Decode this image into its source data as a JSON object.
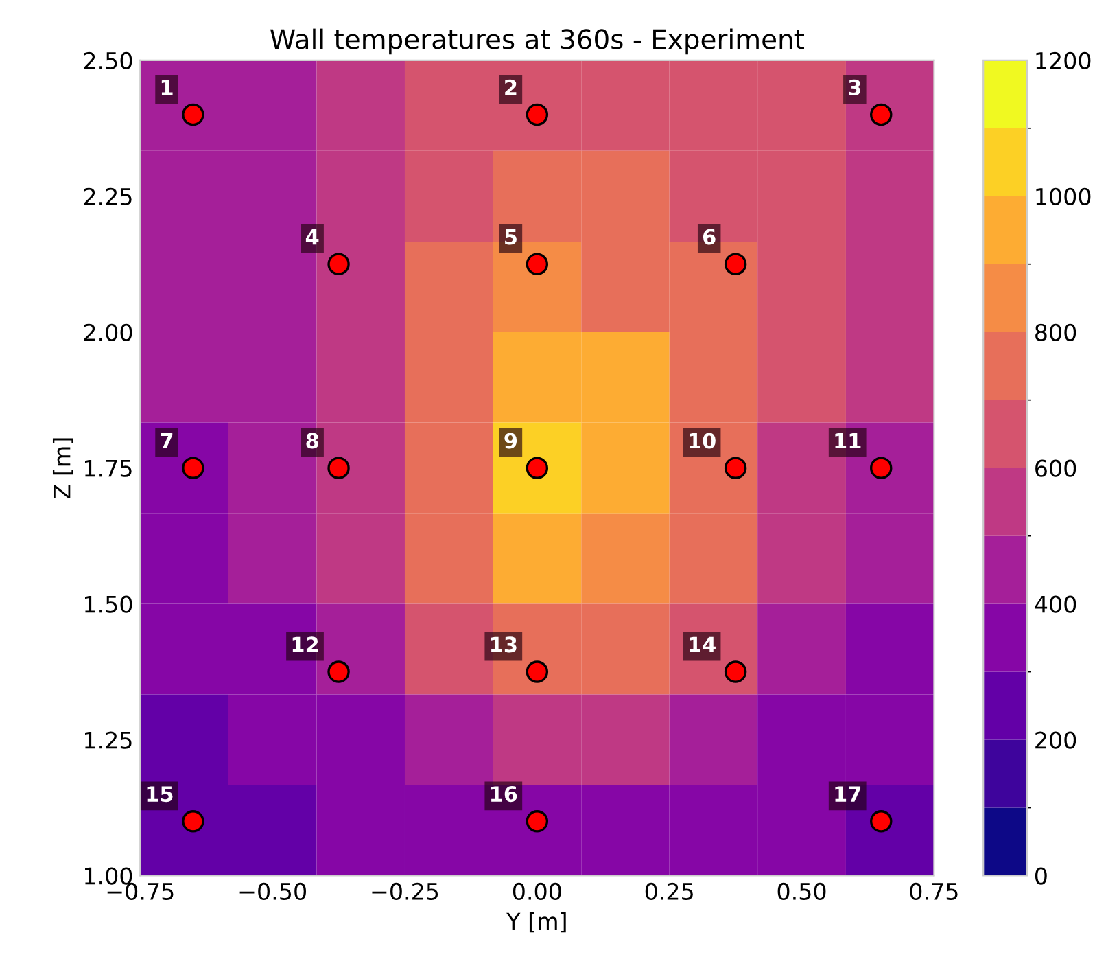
{
  "chart_data": {
    "type": "heatmap",
    "x": [
      -0.667,
      -0.5,
      -0.333,
      -0.167,
      0,
      0.167,
      0.333,
      0.5,
      0.667
    ],
    "y": [
      2.417,
      2.25,
      2.083,
      1.917,
      1.75,
      1.583,
      1.417,
      1.25,
      1.083
    ],
    "cells": [
      [
        430,
        480,
        560,
        640,
        680,
        680,
        650,
        600,
        560
      ],
      [
        420,
        470,
        560,
        660,
        720,
        710,
        660,
        600,
        540
      ],
      [
        410,
        460,
        560,
        700,
        800,
        780,
        700,
        600,
        520
      ],
      [
        400,
        450,
        560,
        760,
        930,
        900,
        740,
        600,
        500
      ],
      [
        380,
        440,
        550,
        780,
        1010,
        960,
        760,
        580,
        470
      ],
      [
        360,
        410,
        520,
        730,
        920,
        880,
        720,
        530,
        430
      ],
      [
        320,
        370,
        470,
        620,
        720,
        700,
        600,
        460,
        380
      ],
      [
        280,
        320,
        390,
        480,
        530,
        520,
        470,
        380,
        320
      ],
      [
        250,
        280,
        330,
        370,
        390,
        380,
        350,
        300,
        260
      ]
    ],
    "title": "Wall temperatures at 360s - Experiment",
    "xlabel": "Y [m]",
    "ylabel": "Z [m]",
    "clim": [
      0,
      1200
    ],
    "cticks": [
      0,
      200,
      400,
      600,
      800,
      1000,
      1200
    ],
    "xlim": [
      -0.75,
      0.75
    ],
    "xticks": [
      {
        "value": -0.75,
        "label": "−0.75"
      },
      {
        "value": -0.5,
        "label": "−0.50"
      },
      {
        "value": -0.25,
        "label": "−0.25"
      },
      {
        "value": 0,
        "label": "0.00"
      },
      {
        "value": 0.25,
        "label": "0.25"
      },
      {
        "value": 0.5,
        "label": "0.50"
      },
      {
        "value": 0.75,
        "label": "0.75"
      }
    ],
    "ylim": [
      1.0,
      2.5
    ],
    "yticks": [
      {
        "value": 1.0,
        "label": "1.00"
      },
      {
        "value": 1.25,
        "label": "1.25"
      },
      {
        "value": 1.5,
        "label": "1.50"
      },
      {
        "value": 1.75,
        "label": "1.75"
      },
      {
        "value": 2.0,
        "label": "2.00"
      },
      {
        "value": 2.25,
        "label": "2.25"
      },
      {
        "value": 2.5,
        "label": "2.50"
      }
    ],
    "series": [
      {
        "type": "scatter",
        "color": "#ff0000",
        "marker": "circle",
        "x": [
          -0.65,
          0,
          0.65,
          -0.375,
          0,
          0.375,
          -0.65,
          -0.375,
          0,
          0.375,
          0.65,
          -0.375,
          0,
          0.375,
          -0.65,
          0,
          0.65
        ],
        "values": [
          2.4,
          2.4,
          2.4,
          2.125,
          2.125,
          2.125,
          1.75,
          1.75,
          1.75,
          1.75,
          1.75,
          1.375,
          1.375,
          1.375,
          1.1,
          1.1,
          1.1
        ]
      }
    ],
    "annotations": [
      {
        "text": "1",
        "x": -0.65,
        "y": 2.4
      },
      {
        "text": "2",
        "x": 0,
        "y": 2.4
      },
      {
        "text": "3",
        "x": 0.65,
        "y": 2.4
      },
      {
        "text": "4",
        "x": -0.375,
        "y": 2.125
      },
      {
        "text": "5",
        "x": 0,
        "y": 2.125
      },
      {
        "text": "6",
        "x": 0.375,
        "y": 2.125
      },
      {
        "text": "7",
        "x": -0.65,
        "y": 1.75
      },
      {
        "text": "8",
        "x": -0.375,
        "y": 1.75
      },
      {
        "text": "9",
        "x": 0,
        "y": 1.75
      },
      {
        "text": "10",
        "x": 0.375,
        "y": 1.75
      },
      {
        "text": "11",
        "x": 0.65,
        "y": 1.75
      },
      {
        "text": "12",
        "x": -0.375,
        "y": 1.375
      },
      {
        "text": "13",
        "x": 0,
        "y": 1.375
      },
      {
        "text": "14",
        "x": 0.375,
        "y": 1.375
      },
      {
        "text": "15",
        "x": -0.65,
        "y": 1.1
      },
      {
        "text": "16",
        "x": 0,
        "y": 1.1
      },
      {
        "text": "17",
        "x": 0.65,
        "y": 1.1
      }
    ],
    "grid": false
  }
}
